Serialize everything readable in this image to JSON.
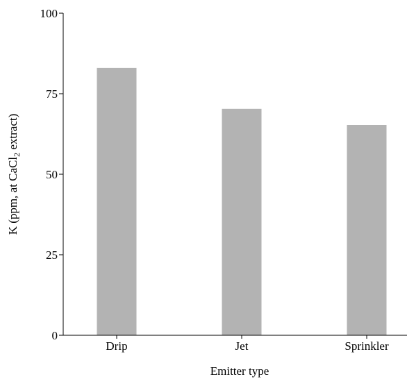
{
  "chart_data": {
    "type": "bar",
    "categories": [
      "Drip",
      "Jet",
      "Sprinkler"
    ],
    "values": [
      83,
      70.3,
      65.3
    ],
    "xlabel": "Emitter type",
    "ylabel": {
      "before": "K (ppm, at CaCl",
      "subscript": "2",
      "after": " extract)"
    },
    "ylim": [
      0,
      100
    ],
    "yticks": [
      0,
      25,
      50,
      75,
      100
    ],
    "grid": false,
    "bar_color": "#b3b3b3",
    "axis_color": "#000000"
  }
}
